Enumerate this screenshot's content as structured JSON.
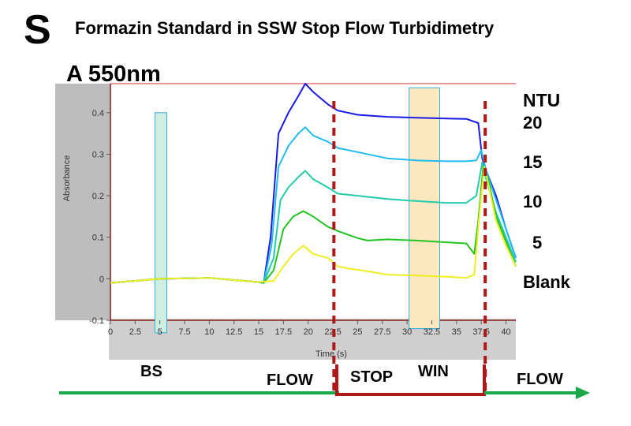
{
  "header": {
    "letter": "S",
    "title": "Formazin Standard in SSW Stop Flow Turbidimetry",
    "subtitle": "A 550nm"
  },
  "ntu": {
    "heading": "NTU",
    "levels": [
      "20",
      "15",
      "10",
      "5",
      "Blank"
    ]
  },
  "regions": {
    "bs": "BS",
    "flow1": "FLOW",
    "stop": "STOP",
    "win": "WIN",
    "flow2": "FLOW"
  },
  "colors": {
    "accent_red": "#b01818",
    "arrow_green": "#1aa84a",
    "bs_fill": "#cfeee2",
    "win_fill": "#fde7be",
    "box_border": "#33aadd"
  },
  "chart_data": {
    "type": "line",
    "title": "",
    "xlabel": "Time (s)",
    "ylabel": "Absorbance",
    "xlim": [
      0,
      41
    ],
    "ylim": [
      -0.1,
      0.47
    ],
    "xticks": [
      0,
      2.5,
      5,
      7.5,
      10,
      12.5,
      15,
      17.5,
      20,
      22.5,
      25,
      27.5,
      30,
      32.5,
      35,
      37.5,
      40
    ],
    "yticks": [
      -0.1,
      0,
      0.1,
      0.2,
      0.3,
      0.4
    ],
    "grid": false,
    "shaded_regions": [
      {
        "label": "BS",
        "x": [
          4.5,
          5.7
        ],
        "y": [
          -0.13,
          0.4
        ]
      },
      {
        "label": "WIN",
        "x": [
          30.2,
          33.3
        ],
        "y": [
          -0.12,
          0.46
        ]
      }
    ],
    "markers": [
      22.6,
      37.9
    ],
    "series": [
      {
        "name": "20",
        "color": "#1a1ae6",
        "points": [
          [
            0,
            -0.01
          ],
          [
            5,
            0
          ],
          [
            10,
            0.002
          ],
          [
            15,
            -0.008
          ],
          [
            15.5,
            -0.01
          ],
          [
            16.2,
            0.1
          ],
          [
            17,
            0.35
          ],
          [
            18,
            0.4
          ],
          [
            19,
            0.44
          ],
          [
            19.7,
            0.47
          ],
          [
            20.5,
            0.45
          ],
          [
            22,
            0.42
          ],
          [
            23,
            0.405
          ],
          [
            25,
            0.395
          ],
          [
            28,
            0.39
          ],
          [
            31,
            0.388
          ],
          [
            34,
            0.386
          ],
          [
            36,
            0.385
          ],
          [
            37.2,
            0.375
          ],
          [
            37.6,
            0.29
          ],
          [
            38,
            0.26
          ],
          [
            39,
            0.2
          ],
          [
            40,
            0.12
          ],
          [
            41,
            0.05
          ]
        ]
      },
      {
        "name": "15",
        "color": "#22bbee",
        "points": [
          [
            0,
            -0.01
          ],
          [
            5,
            0
          ],
          [
            10,
            0.002
          ],
          [
            15,
            -0.008
          ],
          [
            15.5,
            -0.01
          ],
          [
            16.3,
            0.08
          ],
          [
            17,
            0.27
          ],
          [
            18,
            0.32
          ],
          [
            19,
            0.35
          ],
          [
            19.7,
            0.365
          ],
          [
            20.5,
            0.345
          ],
          [
            22,
            0.33
          ],
          [
            23,
            0.315
          ],
          [
            25,
            0.305
          ],
          [
            28,
            0.29
          ],
          [
            31,
            0.285
          ],
          [
            34,
            0.283
          ],
          [
            36,
            0.283
          ],
          [
            37,
            0.285
          ],
          [
            37.5,
            0.31
          ],
          [
            38,
            0.26
          ],
          [
            39,
            0.19
          ],
          [
            40,
            0.12
          ],
          [
            41,
            0.05
          ]
        ]
      },
      {
        "name": "10",
        "color": "#22ccaa",
        "points": [
          [
            0,
            -0.01
          ],
          [
            5,
            0
          ],
          [
            10,
            0.002
          ],
          [
            15,
            -0.008
          ],
          [
            15.5,
            -0.01
          ],
          [
            16.5,
            0.05
          ],
          [
            17.2,
            0.19
          ],
          [
            18,
            0.22
          ],
          [
            19,
            0.245
          ],
          [
            19.7,
            0.26
          ],
          [
            20.5,
            0.24
          ],
          [
            22,
            0.22
          ],
          [
            23,
            0.205
          ],
          [
            25,
            0.2
          ],
          [
            28,
            0.192
          ],
          [
            31,
            0.187
          ],
          [
            34,
            0.183
          ],
          [
            36,
            0.183
          ],
          [
            37,
            0.2
          ],
          [
            37.6,
            0.28
          ],
          [
            38,
            0.24
          ],
          [
            39,
            0.16
          ],
          [
            40,
            0.1
          ],
          [
            41,
            0.04
          ]
        ]
      },
      {
        "name": "5",
        "color": "#22c422",
        "points": [
          [
            0,
            -0.01
          ],
          [
            5,
            0
          ],
          [
            10,
            0.002
          ],
          [
            15,
            -0.008
          ],
          [
            15.5,
            -0.01
          ],
          [
            16.5,
            0.02
          ],
          [
            17.5,
            0.12
          ],
          [
            18.5,
            0.15
          ],
          [
            19.5,
            0.163
          ],
          [
            20.5,
            0.15
          ],
          [
            22,
            0.125
          ],
          [
            23,
            0.115
          ],
          [
            25,
            0.098
          ],
          [
            26,
            0.092
          ],
          [
            28,
            0.095
          ],
          [
            31,
            0.092
          ],
          [
            34,
            0.088
          ],
          [
            36,
            0.085
          ],
          [
            36.8,
            0.06
          ],
          [
            37.2,
            0.14
          ],
          [
            37.7,
            0.27
          ],
          [
            38.2,
            0.24
          ],
          [
            39,
            0.15
          ],
          [
            40,
            0.09
          ],
          [
            41,
            0.03
          ]
        ]
      },
      {
        "name": "Blank",
        "color": "#eeee22",
        "points": [
          [
            0,
            -0.01
          ],
          [
            5,
            0
          ],
          [
            10,
            0.002
          ],
          [
            15,
            -0.008
          ],
          [
            16.5,
            -0.005
          ],
          [
            17.5,
            0.03
          ],
          [
            18.5,
            0.06
          ],
          [
            19.5,
            0.08
          ],
          [
            20.5,
            0.06
          ],
          [
            22,
            0.05
          ],
          [
            23,
            0.03
          ],
          [
            24,
            0.025
          ],
          [
            26,
            0.018
          ],
          [
            28,
            0.01
          ],
          [
            31,
            0.008
          ],
          [
            34,
            0.005
          ],
          [
            36,
            0.002
          ],
          [
            36.8,
            0.01
          ],
          [
            37.3,
            0.15
          ],
          [
            37.8,
            0.27
          ],
          [
            38.2,
            0.23
          ],
          [
            39,
            0.14
          ],
          [
            40,
            0.08
          ],
          [
            41,
            0.03
          ]
        ]
      }
    ]
  }
}
